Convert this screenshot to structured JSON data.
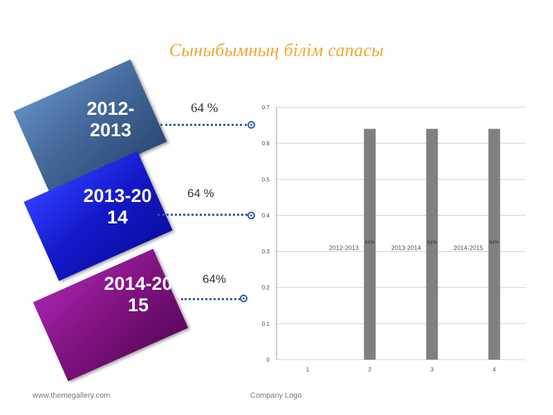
{
  "title": "Сыныбымның  білім сапасы",
  "cards": [
    {
      "line1": "2012-",
      "line2": "2013",
      "percent": "64 %"
    },
    {
      "line1": "2013-20",
      "line2": "14",
      "percent": "64 %"
    },
    {
      "line1": "2014-20",
      "line2": "15",
      "percent": "64%"
    }
  ],
  "footer": {
    "left": "www.themegallery.com",
    "right": "Company Logo"
  },
  "colors": {
    "title": "#f0a830",
    "bar": "#808080",
    "card1": "#44699a",
    "card2": "#1418c8",
    "card3": "#7e137f",
    "connector": "#2e5a9a"
  },
  "chart_data": {
    "type": "bar",
    "categories": [
      "1",
      "2",
      "3",
      "4"
    ],
    "values": [
      0,
      0.64,
      0.64,
      0.64
    ],
    "data_labels": [
      "",
      "64%",
      "64%",
      "64%"
    ],
    "category_annotations": [
      "2012-2013",
      "2013-2014",
      "2014-2015"
    ],
    "ylim": [
      0,
      0.7
    ],
    "yticks": [
      "0",
      "0.1",
      "0.2",
      "0.3",
      "0.4",
      "0.5",
      "0.6",
      "0.7"
    ],
    "grid": true,
    "legend": "none"
  }
}
